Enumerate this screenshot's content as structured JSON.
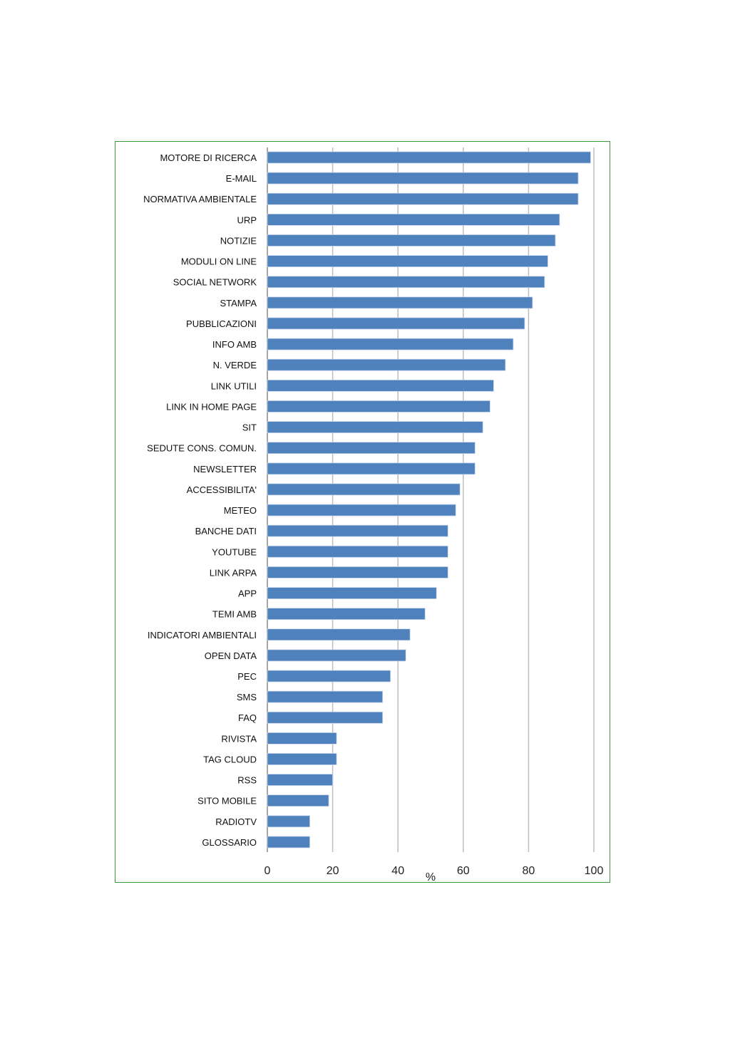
{
  "chart_data": {
    "type": "bar",
    "orientation": "horizontal",
    "title": "",
    "xlabel": "%",
    "ylabel": "",
    "xlim": [
      0,
      100
    ],
    "xticks": [
      0,
      20,
      40,
      60,
      80,
      100
    ],
    "grid": true,
    "bar_color": "#4f81bd",
    "categories": [
      "MOTORE DI RICERCA",
      "E-MAIL",
      "NORMATIVA AMBIENTALE",
      "URP",
      "NOTIZIE",
      "MODULI ON LINE",
      "SOCIAL NETWORK",
      "STAMPA",
      "PUBBLICAZIONI",
      "INFO AMB",
      "N. VERDE",
      "LINK UTILI",
      "LINK IN HOME PAGE",
      "SIT",
      "SEDUTE CONS. COMUN.",
      "NEWSLETTER",
      "ACCESSIBILITA'",
      "METEO",
      "BANCHE DATI",
      "YOUTUBE",
      "LINK ARPA",
      "APP",
      "TEMI AMB",
      "INDICATORI AMBIENTALI",
      "OPEN DATA",
      "PEC",
      "SMS",
      "FAQ",
      "RIVISTA",
      "TAG CLOUD",
      "RSS",
      "SITO MOBILE",
      "RADIOTV",
      "GLOSSARIO"
    ],
    "values": [
      99,
      95.2,
      95.2,
      89.5,
      88.2,
      85.9,
      84.9,
      81.2,
      78.8,
      75.3,
      72.9,
      69.3,
      68.2,
      66,
      63.6,
      63.6,
      59,
      57.7,
      55.3,
      55.3,
      55.3,
      51.8,
      48.3,
      43.7,
      42.4,
      37.7,
      35.3,
      35.3,
      21.2,
      21.2,
      20,
      18.8,
      13,
      13
    ]
  }
}
